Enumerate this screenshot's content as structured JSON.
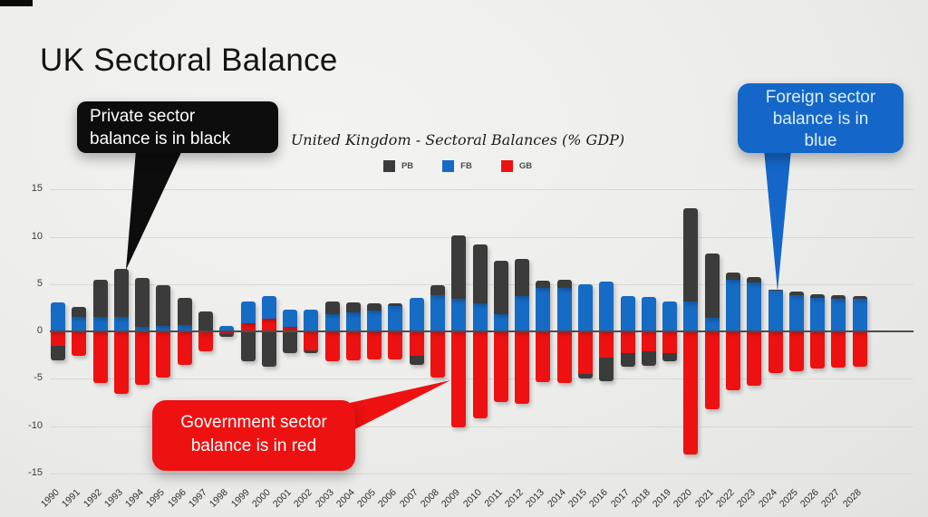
{
  "slide": {
    "title": "UK Sectoral Balance"
  },
  "callouts": {
    "private": {
      "lines": [
        "Private sector",
        "balance is in black"
      ],
      "color": "#0d0d0d"
    },
    "foreign": {
      "lines": [
        "Foreign sector",
        "balance is in",
        "blue"
      ],
      "color": "#1467c8"
    },
    "government": {
      "lines": [
        "Government sector",
        "balance is in red"
      ],
      "color": "#ee1111"
    }
  },
  "chart_data": {
    "type": "bar",
    "stacked": true,
    "title": "United Kingdom - Sectoral Balances (% GDP)",
    "xlabel": "",
    "ylabel": "",
    "ylim": [
      -15,
      15
    ],
    "yticks": [
      15,
      10,
      5,
      0,
      -5,
      -10,
      -15
    ],
    "grid": true,
    "legend_position": "top",
    "legend": [
      {
        "label": "PB",
        "color": "#3b3b3b"
      },
      {
        "label": "FB",
        "color": "#166bc5"
      },
      {
        "label": "GB",
        "color": "#ee1111"
      }
    ],
    "categories": [
      1990,
      1991,
      1992,
      1993,
      1994,
      1995,
      1996,
      1997,
      1998,
      1999,
      2000,
      2001,
      2002,
      2003,
      2004,
      2005,
      2006,
      2007,
      2008,
      2009,
      2010,
      2011,
      2012,
      2013,
      2014,
      2015,
      2016,
      2017,
      2018,
      2019,
      2020,
      2021,
      2022,
      2023,
      2024,
      2025,
      2026,
      2027,
      2028
    ],
    "series": [
      {
        "name": "PB",
        "color": "#3b3b3b",
        "values": [
          -1.6,
          1.1,
          4.0,
          5.1,
          5.1,
          4.3,
          2.8,
          2.0,
          -0.3,
          -3.2,
          -3.7,
          -2.3,
          -0.3,
          1.4,
          1.1,
          0.8,
          0.3,
          -0.9,
          1.1,
          6.7,
          6.2,
          5.7,
          4.0,
          0.8,
          0.9,
          -0.5,
          -2.5,
          -1.4,
          -1.5,
          -0.9,
          9.8,
          6.8,
          0.7,
          0.5,
          0.1,
          0.4,
          0.4,
          0.4,
          0.3
        ]
      },
      {
        "name": "FB",
        "color": "#166bc5",
        "values": [
          3.1,
          1.5,
          1.5,
          1.5,
          0.5,
          0.6,
          0.7,
          0.1,
          0.6,
          2.3,
          2.4,
          1.8,
          2.3,
          1.8,
          2.0,
          2.2,
          2.7,
          3.5,
          3.8,
          3.4,
          3.0,
          1.8,
          3.7,
          4.6,
          4.6,
          5.0,
          5.3,
          3.7,
          3.6,
          3.2,
          3.2,
          1.4,
          5.5,
          5.2,
          4.3,
          3.8,
          3.5,
          3.4,
          3.4
        ]
      },
      {
        "name": "GB",
        "color": "#ee1111",
        "values": [
          -1.5,
          -2.6,
          -5.5,
          -6.6,
          -5.6,
          -4.9,
          -3.5,
          -2.1,
          -0.3,
          0.9,
          1.3,
          0.5,
          -2.0,
          -3.2,
          -3.1,
          -3.0,
          -3.0,
          -2.6,
          -4.9,
          -10.1,
          -9.2,
          -7.5,
          -7.7,
          -5.4,
          -5.5,
          -4.5,
          -2.8,
          -2.3,
          -2.1,
          -2.3,
          -13.0,
          -8.2,
          -6.2,
          -5.7,
          -4.4,
          -4.2,
          -3.9,
          -3.8,
          -3.7
        ]
      }
    ]
  }
}
